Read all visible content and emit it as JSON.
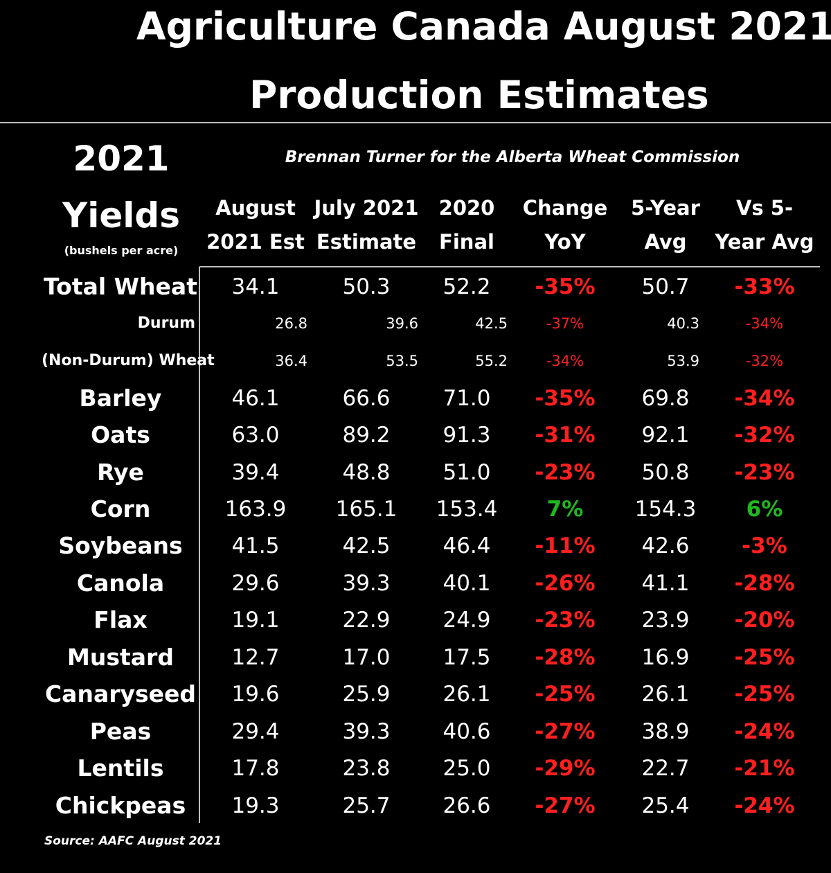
{
  "title_line1": "Agriculture Canada August 2021",
  "title_line2": "Production Estimates",
  "year_label": "2021",
  "yields_label": "Yields",
  "units_label": "(bushels per acre)",
  "byline": "Brennan Turner for the Alberta Wheat Commission",
  "source": "Source: AAFC August 2021",
  "colors": {
    "negative": "#ff1f1f",
    "positive": "#1fb81f",
    "text": "#ffffff",
    "background": "#000000"
  },
  "columns": [
    {
      "line1": "August",
      "line2": "2021 Est"
    },
    {
      "line1": "July 2021",
      "line2": "Estimate"
    },
    {
      "line1": "2020",
      "line2": "Final"
    },
    {
      "line1": "Change",
      "line2": "YoY"
    },
    {
      "line1": "5-Year",
      "line2": "Avg"
    },
    {
      "line1": "Vs 5-",
      "line2": "Year Avg"
    }
  ],
  "chart_data": {
    "type": "table",
    "title": "Agriculture Canada August 2021 Production Estimates",
    "columns": [
      "August 2021 Est",
      "July 2021 Estimate",
      "2020 Final",
      "Change YoY",
      "5-Year Avg",
      "Vs 5-Year Avg"
    ],
    "rows": [
      {
        "crop": "Total Wheat",
        "sub": false,
        "aug": "34.1",
        "jul": "50.3",
        "final2020": "52.2",
        "yoy": "-35%",
        "avg5": "50.7",
        "vs5": "-33%"
      },
      {
        "crop": "Durum",
        "sub": true,
        "aug": "26.8",
        "jul": "39.6",
        "final2020": "42.5",
        "yoy": "-37%",
        "avg5": "40.3",
        "vs5": "-34%"
      },
      {
        "crop": "(Non-Durum) Wheat",
        "sub": true,
        "aug": "36.4",
        "jul": "53.5",
        "final2020": "55.2",
        "yoy": "-34%",
        "avg5": "53.9",
        "vs5": "-32%"
      },
      {
        "crop": "Barley",
        "sub": false,
        "aug": "46.1",
        "jul": "66.6",
        "final2020": "71.0",
        "yoy": "-35%",
        "avg5": "69.8",
        "vs5": "-34%"
      },
      {
        "crop": "Oats",
        "sub": false,
        "aug": "63.0",
        "jul": "89.2",
        "final2020": "91.3",
        "yoy": "-31%",
        "avg5": "92.1",
        "vs5": "-32%"
      },
      {
        "crop": "Rye",
        "sub": false,
        "aug": "39.4",
        "jul": "48.8",
        "final2020": "51.0",
        "yoy": "-23%",
        "avg5": "50.8",
        "vs5": "-23%"
      },
      {
        "crop": "Corn",
        "sub": false,
        "aug": "163.9",
        "jul": "165.1",
        "final2020": "153.4",
        "yoy": "7%",
        "avg5": "154.3",
        "vs5": "6%"
      },
      {
        "crop": "Soybeans",
        "sub": false,
        "aug": "41.5",
        "jul": "42.5",
        "final2020": "46.4",
        "yoy": "-11%",
        "avg5": "42.6",
        "vs5": "-3%"
      },
      {
        "crop": "Canola",
        "sub": false,
        "aug": "29.6",
        "jul": "39.3",
        "final2020": "40.1",
        "yoy": "-26%",
        "avg5": "41.1",
        "vs5": "-28%"
      },
      {
        "crop": "Flax",
        "sub": false,
        "aug": "19.1",
        "jul": "22.9",
        "final2020": "24.9",
        "yoy": "-23%",
        "avg5": "23.9",
        "vs5": "-20%"
      },
      {
        "crop": "Mustard",
        "sub": false,
        "aug": "12.7",
        "jul": "17.0",
        "final2020": "17.5",
        "yoy": "-28%",
        "avg5": "16.9",
        "vs5": "-25%"
      },
      {
        "crop": "Canaryseed",
        "sub": false,
        "aug": "19.6",
        "jul": "25.9",
        "final2020": "26.1",
        "yoy": "-25%",
        "avg5": "26.1",
        "vs5": "-25%"
      },
      {
        "crop": "Peas",
        "sub": false,
        "aug": "29.4",
        "jul": "39.3",
        "final2020": "40.6",
        "yoy": "-27%",
        "avg5": "38.9",
        "vs5": "-24%"
      },
      {
        "crop": "Lentils",
        "sub": false,
        "aug": "17.8",
        "jul": "23.8",
        "final2020": "25.0",
        "yoy": "-29%",
        "avg5": "22.7",
        "vs5": "-21%"
      },
      {
        "crop": "Chickpeas",
        "sub": false,
        "aug": "19.3",
        "jul": "25.7",
        "final2020": "26.6",
        "yoy": "-27%",
        "avg5": "25.4",
        "vs5": "-24%"
      }
    ]
  }
}
